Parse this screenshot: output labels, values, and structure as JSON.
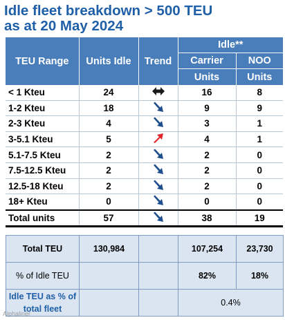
{
  "title": {
    "line1": "Idle fleet breakdown > 500 TEU",
    "line2": "as at 20 May 2024"
  },
  "header": {
    "teu_range": "TEU Range",
    "units_idle": "Units Idle",
    "trend": "Trend",
    "idle": "Idle**",
    "carrier": "Carrier",
    "noo": "NOO",
    "carrier_units": "Units",
    "noo_units": "Units"
  },
  "rows": [
    {
      "range": "< 1 Kteu",
      "units": "24",
      "trend": "flat",
      "carrier": "16",
      "noo": "8"
    },
    {
      "range": "1-2 Kteu",
      "units": "18",
      "trend": "down",
      "carrier": "9",
      "noo": "9"
    },
    {
      "range": "2-3 Kteu",
      "units": "4",
      "trend": "down",
      "carrier": "3",
      "noo": "1"
    },
    {
      "range": "3-5.1 Kteu",
      "units": "5",
      "trend": "up",
      "carrier": "4",
      "noo": "1"
    },
    {
      "range": "5.1-7.5 Kteu",
      "units": "2",
      "trend": "down",
      "carrier": "2",
      "noo": "0"
    },
    {
      "range": "7.5-12.5 Kteu",
      "units": "2",
      "trend": "down",
      "carrier": "2",
      "noo": "0"
    },
    {
      "range": "12.5-18 Kteu",
      "units": "2",
      "trend": "down",
      "carrier": "2",
      "noo": "0"
    },
    {
      "range": "18+ Kteu",
      "units": "0",
      "trend": "down",
      "carrier": "0",
      "noo": "0"
    }
  ],
  "total": {
    "label": "Total units",
    "units": "57",
    "trend": "down",
    "carrier": "38",
    "noo": "19"
  },
  "summary": {
    "total_teu": {
      "label": "Total TEU",
      "units": "130,984",
      "carrier": "107,254",
      "noo": "23,730"
    },
    "pct_idle": {
      "label": "% of Idle TEU",
      "carrier": "82%",
      "noo": "18%"
    },
    "pct_fleet": {
      "label": "Idle TEU as % of total fleet",
      "value": "0.4%"
    }
  },
  "colors": {
    "header_bg": "#4a7ebb",
    "title": "#1f5fa8",
    "arrow_down": "#1f4e8c",
    "arrow_up": "#e0262b",
    "summary_bg": "#dbe5f1"
  },
  "watermark": "Alphaliner"
}
